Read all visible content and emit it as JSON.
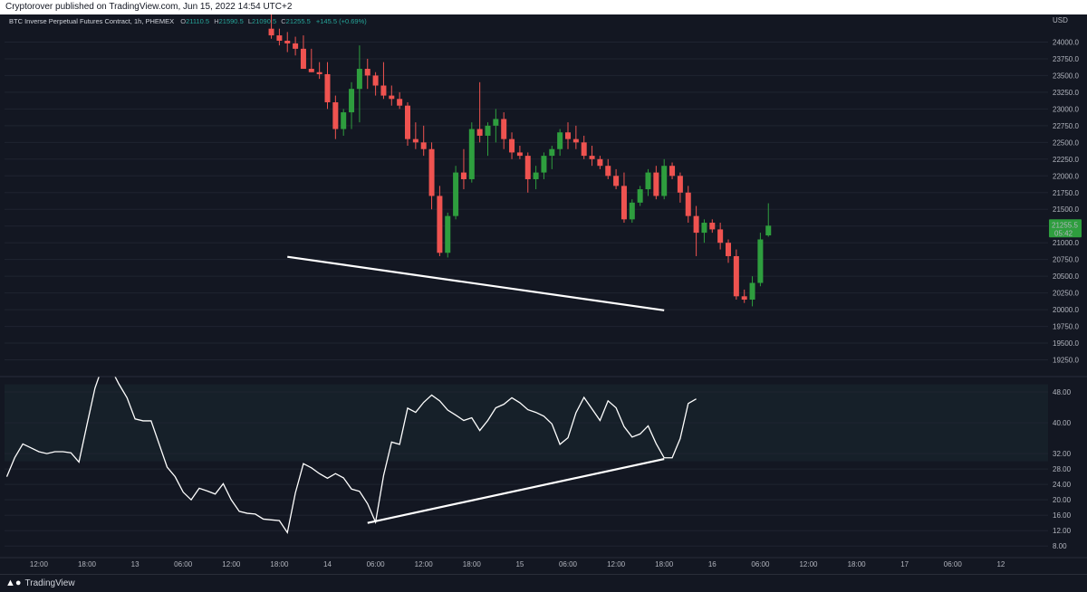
{
  "header": {
    "publisher_text": "Cryptorover published on TradingView.com, Jun 15, 2022 14:54 UTC+2"
  },
  "footer": {
    "logo_text": "TradingView"
  },
  "legend": {
    "symbol": "BTC Inverse Perpetual Futures Contract, 1h, PHEMEX",
    "o_label": "O",
    "o_value": "21110.5",
    "h_label": "H",
    "h_value": "21590.5",
    "l_label": "L",
    "l_value": "21090.5",
    "c_label": "C",
    "c_value": "21255.5",
    "change": "+145.5 (+0.69%)"
  },
  "colors": {
    "background": "#131722",
    "up": "#26a69a",
    "up_candle": "#2e9e3e",
    "down": "#ef5350",
    "grid": "#1f2430",
    "rsi_band": "#162029",
    "text": "#b2b5be",
    "price_tag": "#2e9e3e"
  },
  "chart_data": [
    {
      "type": "candlestick",
      "title": "",
      "currency": "USD",
      "ylim": [
        19000,
        24250
      ],
      "yticks": [
        24000,
        23750,
        23500,
        23250,
        23000,
        22750,
        22500,
        22250,
        22000,
        21750,
        21500,
        21250,
        21000,
        20750,
        20500,
        20250,
        20000,
        19750,
        19500,
        19250
      ],
      "ytick_labels": [
        "24000.0",
        "23750.0",
        "23500.0",
        "23250.0",
        "23000.0",
        "22750.0",
        "22500.0",
        "22250.0",
        "22000.0",
        "21750.0",
        "21500.0",
        "21250.0",
        "21000.0",
        "20750.0",
        "20500.0",
        "20250.0",
        "20000.0",
        "19750.0",
        "19500.0",
        "19250.0"
      ],
      "last_price": "21255.5",
      "countdown": "05:42",
      "first_bar_index": 33,
      "ohlc": [
        [
          24200,
          24450,
          24050,
          24100
        ],
        [
          24100,
          24200,
          23950,
          24020
        ],
        [
          24020,
          24150,
          23850,
          23980
        ],
        [
          23980,
          24080,
          23800,
          23900
        ],
        [
          23900,
          24100,
          23600,
          23600
        ],
        [
          23600,
          23900,
          23550,
          23550
        ],
        [
          23550,
          23700,
          23450,
          23520
        ],
        [
          23520,
          23700,
          23000,
          23100
        ],
        [
          23100,
          23200,
          22550,
          22700
        ],
        [
          22700,
          23000,
          22600,
          22950
        ],
        [
          22950,
          23400,
          22700,
          23300
        ],
        [
          23300,
          23950,
          22800,
          23600
        ],
        [
          23600,
          23750,
          23300,
          23500
        ],
        [
          23500,
          23550,
          23200,
          23350
        ],
        [
          23350,
          23700,
          23150,
          23200
        ],
        [
          23200,
          23350,
          23050,
          23150
        ],
        [
          23150,
          23250,
          23000,
          23050
        ],
        [
          23050,
          23100,
          22450,
          22550
        ],
        [
          22550,
          22800,
          22400,
          22500
        ],
        [
          22500,
          22750,
          22300,
          22400
        ],
        [
          22400,
          22500,
          21500,
          21700
        ],
        [
          21700,
          21850,
          20800,
          20850
        ],
        [
          20850,
          21450,
          20780,
          21400
        ],
        [
          21400,
          22150,
          21350,
          22050
        ],
        [
          22050,
          22400,
          21800,
          21950
        ],
        [
          21950,
          22800,
          21900,
          22700
        ],
        [
          22700,
          23400,
          22500,
          22600
        ],
        [
          22600,
          22800,
          22300,
          22750
        ],
        [
          22750,
          23000,
          22500,
          22850
        ],
        [
          22850,
          22950,
          22400,
          22550
        ],
        [
          22550,
          22650,
          22250,
          22350
        ],
        [
          22350,
          22450,
          22250,
          22300
        ],
        [
          22300,
          22350,
          21750,
          21950
        ],
        [
          21950,
          22150,
          21800,
          22050
        ],
        [
          22050,
          22350,
          21950,
          22300
        ],
        [
          22300,
          22450,
          22100,
          22400
        ],
        [
          22400,
          22700,
          22300,
          22650
        ],
        [
          22650,
          22800,
          22400,
          22550
        ],
        [
          22550,
          22750,
          22400,
          22500
        ],
        [
          22500,
          22600,
          22250,
          22300
        ],
        [
          22300,
          22450,
          22150,
          22250
        ],
        [
          22250,
          22300,
          22100,
          22150
        ],
        [
          22150,
          22250,
          21950,
          22000
        ],
        [
          22000,
          22100,
          21800,
          21850
        ],
        [
          21850,
          22050,
          21300,
          21350
        ],
        [
          21350,
          21650,
          21300,
          21600
        ],
        [
          21600,
          21850,
          21550,
          21800
        ],
        [
          21800,
          22100,
          21700,
          22050
        ],
        [
          22050,
          22150,
          21650,
          21700
        ],
        [
          21700,
          22250,
          21650,
          22150
        ],
        [
          22150,
          22200,
          21950,
          22000
        ],
        [
          22000,
          22050,
          21600,
          21750
        ],
        [
          21750,
          21850,
          21300,
          21400
        ],
        [
          21400,
          21550,
          20800,
          21150
        ],
        [
          21150,
          21350,
          21000,
          21300
        ],
        [
          21300,
          21350,
          21150,
          21200
        ],
        [
          21200,
          21300,
          20900,
          21000
        ],
        [
          21000,
          21050,
          20700,
          20800
        ],
        [
          20800,
          20900,
          20150,
          20200
        ],
        [
          20200,
          20300,
          20100,
          20150
        ],
        [
          20150,
          20500,
          20050,
          20400
        ],
        [
          20400,
          21150,
          20350,
          21050
        ],
        [
          21110.5,
          21590.5,
          21090.5,
          21255.5
        ]
      ],
      "trendline": {
        "from_index": 35,
        "from_value": 20790,
        "to_index": 82,
        "to_value": 19990
      }
    },
    {
      "type": "line",
      "title": "",
      "ylim": [
        5,
        52
      ],
      "band": [
        30,
        50
      ],
      "yticks": [
        48,
        40,
        32,
        28,
        24,
        20,
        16,
        12,
        8
      ],
      "ytick_labels": [
        "48.00",
        "40.00",
        "32.00",
        "28.00",
        "24.00",
        "20.00",
        "16.00",
        "12.00",
        "8.00"
      ],
      "values": [
        26,
        31,
        34.5,
        33.5,
        32.5,
        32,
        32.5,
        32.5,
        32.2,
        29.8,
        39.5,
        49,
        55,
        54,
        50,
        46.5,
        41,
        40.5,
        40.5,
        34.5,
        28.5,
        26,
        22,
        20,
        23,
        22.3,
        21.5,
        24.2,
        20,
        17,
        16.5,
        16.3,
        15,
        14.8,
        14.6,
        11.5,
        21.8,
        29.4,
        28.3,
        26.8,
        25.6,
        26.8,
        25.7,
        22.8,
        22.2,
        19,
        14.2,
        26.3,
        35,
        34.4,
        43.8,
        42.7,
        45.3,
        47.2,
        45.7,
        43.3,
        42,
        40.6,
        41.3,
        38,
        40.6,
        43.9,
        44.8,
        46.5,
        45.2,
        43.4,
        42.7,
        41.7,
        39.7,
        34.4,
        36.1,
        42.6,
        46.6,
        43.6,
        40.6,
        45.7,
        43.9,
        39,
        36.3,
        37.1,
        39.2,
        34.6,
        30.9,
        30.9,
        35.9,
        45,
        46.2
      ],
      "trendline": {
        "from_index": 45,
        "from_value": 14.0,
        "to_index": 82,
        "to_value": 30.6
      }
    }
  ],
  "x_axis": {
    "labels": [
      {
        "i": 4,
        "text": "12:00"
      },
      {
        "i": 10,
        "text": "18:00"
      },
      {
        "i": 16,
        "text": "13"
      },
      {
        "i": 22,
        "text": "06:00"
      },
      {
        "i": 28,
        "text": "12:00"
      },
      {
        "i": 34,
        "text": "18:00"
      },
      {
        "i": 40,
        "text": "14"
      },
      {
        "i": 46,
        "text": "06:00"
      },
      {
        "i": 52,
        "text": "12:00"
      },
      {
        "i": 58,
        "text": "18:00"
      },
      {
        "i": 64,
        "text": "15"
      },
      {
        "i": 70,
        "text": "06:00"
      },
      {
        "i": 76,
        "text": "12:00"
      },
      {
        "i": 82,
        "text": "18:00"
      },
      {
        "i": 88,
        "text": "16"
      },
      {
        "i": 94,
        "text": "06:00"
      },
      {
        "i": 100,
        "text": "12:00"
      },
      {
        "i": 106,
        "text": "18:00"
      },
      {
        "i": 112,
        "text": "17"
      },
      {
        "i": 118,
        "text": "06:00"
      },
      {
        "i": 124,
        "text": "12"
      }
    ]
  }
}
